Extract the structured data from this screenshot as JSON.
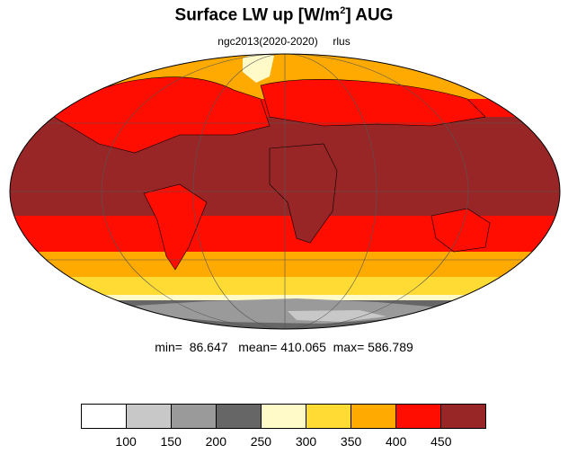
{
  "title_main": "Surface LW up [W/m",
  "title_sup": "2",
  "title_tail": "]  AUG",
  "subtitle": "ngc2013(2020-2020)     rlus",
  "stats_line": "min=  86.647   mean= 410.065  max= 586.789",
  "colorbar": {
    "colors": [
      "#ffffff",
      "#c8c8c8",
      "#9a9a9a",
      "#666666",
      "#fffac8",
      "#ffdb33",
      "#ffaa00",
      "#ff0d00",
      "#992626"
    ],
    "ticks": [
      "100",
      "150",
      "200",
      "250",
      "300",
      "350",
      "400",
      "450"
    ]
  }
}
